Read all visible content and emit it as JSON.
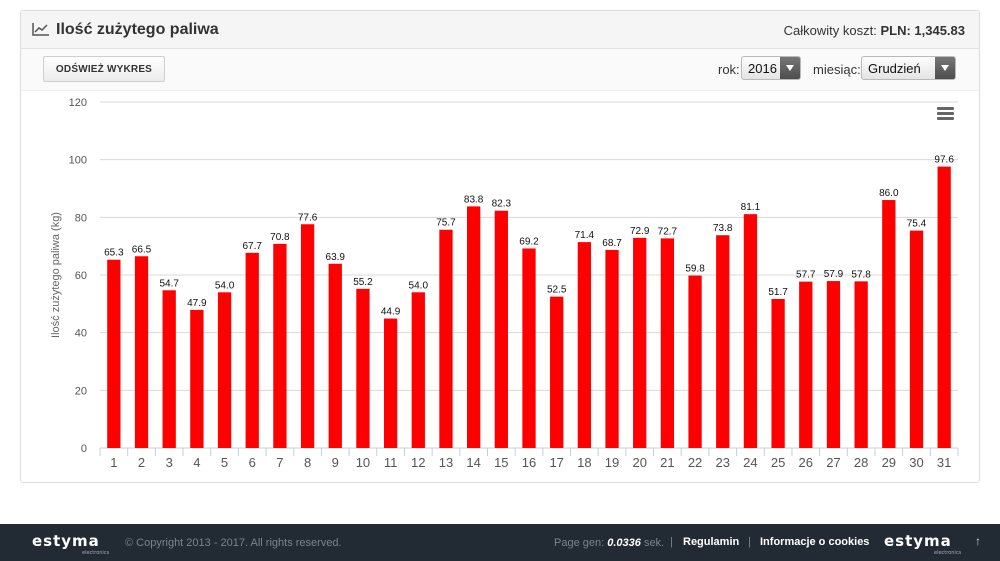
{
  "panel": {
    "title": "Ilość zużytego paliwa",
    "total_label": "Całkowity koszt:",
    "total_value": "PLN: 1,345.83"
  },
  "toolbar": {
    "refresh_label": "ODŚWIEŻ WYKRES",
    "year_label": "rok:",
    "year_value": "2016",
    "month_label": "miesiąc:",
    "month_value": "Grudzień"
  },
  "chart_data": {
    "type": "bar",
    "categories": [
      "1",
      "2",
      "3",
      "4",
      "5",
      "6",
      "7",
      "8",
      "9",
      "10",
      "11",
      "12",
      "13",
      "14",
      "15",
      "16",
      "17",
      "18",
      "19",
      "20",
      "21",
      "22",
      "23",
      "24",
      "25",
      "26",
      "27",
      "28",
      "29",
      "30",
      "31"
    ],
    "values": [
      65.3,
      66.5,
      54.7,
      47.9,
      54.0,
      67.7,
      70.8,
      77.6,
      63.9,
      55.2,
      44.9,
      54.0,
      75.7,
      83.8,
      82.3,
      69.2,
      52.5,
      71.4,
      68.7,
      72.9,
      72.7,
      59.8,
      73.8,
      81.1,
      51.7,
      57.7,
      57.9,
      57.8,
      86.0,
      75.4,
      97.6
    ],
    "value_labels": [
      "65.3",
      "66.5",
      "54.7",
      "47.9",
      "54.0",
      "67.7",
      "70.8",
      "77.6",
      "63.9",
      "55.2",
      "44.9",
      "54.0",
      "75.7",
      "83.8",
      "82.3",
      "69.2",
      "52.5",
      "71.4",
      "68.7",
      "72.9",
      "72.7",
      "59.8",
      "73.8",
      "81.1",
      "51.7",
      "57.7",
      "57.9",
      "57.8",
      "86.0",
      "75.4",
      "97.6"
    ],
    "ylabel": "Ilość zużytego paliwa (kg)",
    "ylim": [
      0,
      120
    ],
    "yticks": [
      "0",
      "20",
      "40",
      "60",
      "80",
      "100",
      "120"
    ],
    "bar_color": "#ff0000",
    "grid": true
  },
  "footer": {
    "logo_text": "estyma",
    "logo_sub": "electronics",
    "copyright": "© Copyright 2013 - 2017. All rights reserved.",
    "pagegen_label": "Page gen:",
    "pagegen_value": "0.0336",
    "pagegen_unit": "sek.",
    "separator": "|",
    "link_terms": "Regulamin",
    "link_cookies": "Informacje o cookies",
    "up_arrow": "↑"
  },
  "colors": {
    "footer_bg": "#222b33",
    "bar": "#ff0000"
  }
}
